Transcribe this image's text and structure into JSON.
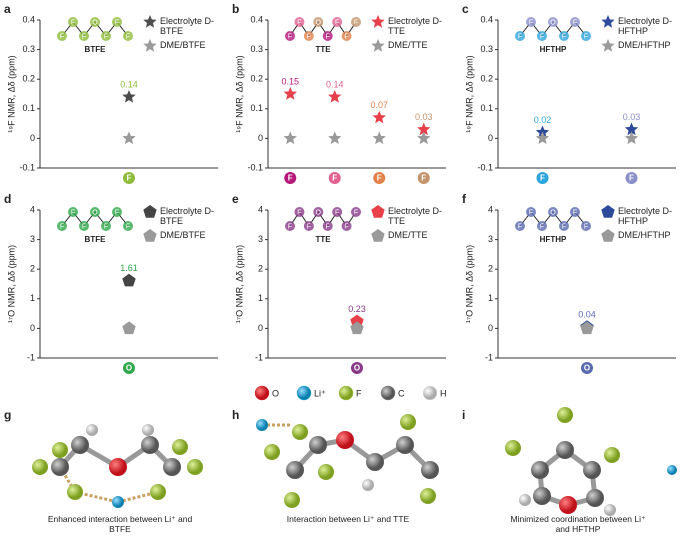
{
  "chart_data": [
    {
      "type": "scatter",
      "panel": "a",
      "ylabel": "¹⁹F NMR, Δδ (ppm)",
      "ylim": [
        -0.1,
        0.4
      ],
      "yticks": [
        -0.1,
        0,
        0.1,
        0.2,
        0.3,
        0.4
      ],
      "categories": [
        "F"
      ],
      "category_colors": [
        "#8dbb3a"
      ],
      "molecule": "BTFE",
      "structure_atoms": [
        "F",
        "F",
        "F",
        "O",
        "F",
        "F",
        "F"
      ],
      "series": [
        {
          "name": "Electrolyte D-BTFE",
          "color": "#4d4d4d",
          "marker": "star",
          "values": [
            0.14
          ]
        },
        {
          "name": "DME/BTFE",
          "color": "#9a9a9a",
          "marker": "star",
          "values": [
            0
          ]
        }
      ]
    },
    {
      "type": "scatter",
      "panel": "b",
      "ylabel": "¹⁹F NMR, Δδ (ppm)",
      "ylim": [
        -0.1,
        0.4
      ],
      "yticks": [
        -0.1,
        0,
        0.1,
        0.2,
        0.3,
        0.4
      ],
      "categories": [
        "F",
        "F",
        "F",
        "F"
      ],
      "category_colors": [
        "#b5177a",
        "#e0628f",
        "#e0824a",
        "#c4946c"
      ],
      "molecule": "TTE",
      "structure_atoms": [
        "F",
        "F",
        "F",
        "O",
        "F",
        "F",
        "F",
        "F"
      ],
      "series": [
        {
          "name": "Electrolyte D-TTE",
          "color": "#e8404a",
          "marker": "star",
          "values": [
            0.15,
            0.14,
            0.07,
            0.03
          ]
        },
        {
          "name": "DME/TTE",
          "color": "#9a9a9a",
          "marker": "star",
          "values": [
            0,
            0,
            0,
            0
          ]
        }
      ]
    },
    {
      "type": "scatter",
      "panel": "c",
      "ylabel": "¹⁹F NMR, Δδ (ppm)",
      "ylim": [
        -0.1,
        0.4
      ],
      "yticks": [
        -0.1,
        0,
        0.1,
        0.2,
        0.3,
        0.4
      ],
      "categories": [
        "F",
        "F"
      ],
      "category_colors": [
        "#2ea4dc",
        "#8a8fc8"
      ],
      "molecule": "HFTHP",
      "structure_atoms": [
        "F",
        "F",
        "F",
        "O",
        "F",
        "F",
        "F"
      ],
      "series": [
        {
          "name": "Electrolyte D-HFTHP",
          "color": "#2e4a9a",
          "marker": "star",
          "values": [
            0.02,
            0.03
          ]
        },
        {
          "name": "DME/HFTHP",
          "color": "#9a9a9a",
          "marker": "star",
          "values": [
            0,
            0
          ]
        }
      ]
    },
    {
      "type": "scatter",
      "panel": "d",
      "ylabel": "¹⁷O NMR, Δδ (ppm)",
      "ylim": [
        -1,
        4
      ],
      "yticks": [
        -1,
        0,
        1,
        2,
        3,
        4
      ],
      "categories": [
        "O"
      ],
      "category_colors": [
        "#2ea84a"
      ],
      "molecule": "BTFE",
      "structure_atoms": [
        "F",
        "F",
        "F",
        "O",
        "F",
        "F",
        "F"
      ],
      "series": [
        {
          "name": "Electrolyte D-BTFE",
          "color": "#444444",
          "marker": "pentagon",
          "values": [
            1.61
          ]
        },
        {
          "name": "DME/BTFE",
          "color": "#9a9a9a",
          "marker": "pentagon",
          "values": [
            0
          ]
        }
      ]
    },
    {
      "type": "scatter",
      "panel": "e",
      "ylabel": "¹⁷O NMR, Δδ (ppm)",
      "ylim": [
        -1,
        4
      ],
      "yticks": [
        -1,
        0,
        1,
        2,
        3,
        4
      ],
      "categories": [
        "O"
      ],
      "category_colors": [
        "#8a3a8a"
      ],
      "molecule": "TTE",
      "structure_atoms": [
        "F",
        "F",
        "F",
        "O",
        "F",
        "F",
        "F",
        "F"
      ],
      "series": [
        {
          "name": "Electrolyte D-TTE",
          "color": "#e8404a",
          "marker": "pentagon",
          "values": [
            0.23
          ]
        },
        {
          "name": "DME/TTE",
          "color": "#9a9a9a",
          "marker": "pentagon",
          "values": [
            0
          ]
        }
      ]
    },
    {
      "type": "scatter",
      "panel": "f",
      "ylabel": "¹⁷O NMR, Δδ (ppm)",
      "ylim": [
        -1,
        4
      ],
      "yticks": [
        -1,
        0,
        1,
        2,
        3,
        4
      ],
      "categories": [
        "O"
      ],
      "category_colors": [
        "#5a6ab0"
      ],
      "molecule": "HFTHP",
      "structure_atoms": [
        "F",
        "F",
        "F",
        "O",
        "F",
        "F",
        "F"
      ],
      "series": [
        {
          "name": "Electrolyte D-HFTHP",
          "color": "#2e4a9a",
          "marker": "pentagon",
          "values": [
            0.04
          ]
        },
        {
          "name": "DME/HFTHP",
          "color": "#9a9a9a",
          "marker": "pentagon",
          "values": [
            0
          ]
        }
      ]
    }
  ],
  "atom_legend": [
    {
      "label": "O",
      "color": "#d8202a"
    },
    {
      "label": "Li⁺",
      "color": "#1aa0d0"
    },
    {
      "label": "F",
      "color": "#9cc43a"
    },
    {
      "label": "C",
      "color": "#808080"
    },
    {
      "label": "H",
      "color": "#e6e6e6"
    }
  ],
  "structures": [
    {
      "panel": "g",
      "caption": "Enhanced interaction between Li⁺ and BTFE"
    },
    {
      "panel": "h",
      "caption": "Interaction between Li⁺ and TTE"
    },
    {
      "panel": "i",
      "caption": "Minimized coordination between Li⁺ and HFTHP"
    }
  ]
}
